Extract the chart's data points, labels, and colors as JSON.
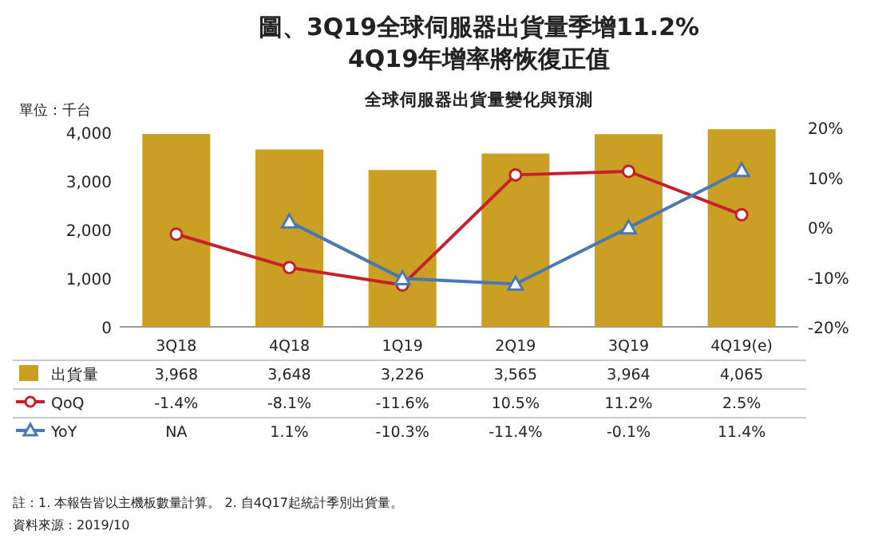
{
  "chart_data": {
    "type": "bar",
    "title": "圖、3Q19全球伺服器出貨量季增11.2%",
    "subtitle": "4Q19年增率將恢復正值",
    "ylabel": "單位：千台",
    "annotations": [
      "全球伺服器出貨量變化與預測",
      "註：1. 本報告皆以主機板數量計算。 2. 自4Q17起統計季別出貨量。",
      "資料來源：2019/10"
    ],
    "categories": [
      "3Q18",
      "4Q18",
      "1Q19",
      "2Q19",
      "3Q19",
      "4Q19(e)"
    ],
    "ylim": [
      0,
      4100
    ],
    "yticks": [
      0,
      {
        "value": 1000,
        "label": "1,000"
      },
      {
        "value": 2000,
        "label": "2,000"
      },
      {
        "value": 3000,
        "label": "3,000"
      },
      {
        "value": 4000,
        "label": "4,000"
      }
    ],
    "y2lim": [
      -20,
      20
    ],
    "y2ticks": [
      {
        "value": -20,
        "label": "-20%"
      },
      {
        "value": -10,
        "label": "-10%"
      },
      {
        "value": 0,
        "label": "0%"
      },
      {
        "value": 10,
        "label": "10%"
      },
      {
        "value": 20,
        "label": "20%"
      }
    ],
    "legend": "bottom",
    "series": [
      {
        "name": "出貨量",
        "color": "#c9a023",
        "values": [
          3968,
          3648,
          3226,
          3565,
          3964,
          4065
        ],
        "value_labels": [
          "3,968",
          "3,648",
          "3,226",
          "3,565",
          "3,964",
          "4,065"
        ]
      },
      {
        "name": "QoQ",
        "type": "line",
        "axis": "y2",
        "color": "#c8202a",
        "marker": "circle",
        "values": [
          -1.4,
          -8.1,
          -11.6,
          10.5,
          11.2,
          2.5
        ],
        "value_labels": [
          "-1.4%",
          "-8.1%",
          "-11.6%",
          "10.5%",
          "11.2%",
          "2.5%"
        ]
      },
      {
        "name": "YoY",
        "type": "line",
        "axis": "y2",
        "color": "#4a78b5",
        "marker": "triangle",
        "values": [
          null,
          1.1,
          -10.3,
          -11.4,
          -0.1,
          11.4
        ],
        "value_labels": [
          "NA",
          "1.1%",
          "-10.3%",
          "-11.4%",
          "-0.1%",
          "11.4%"
        ]
      }
    ]
  }
}
